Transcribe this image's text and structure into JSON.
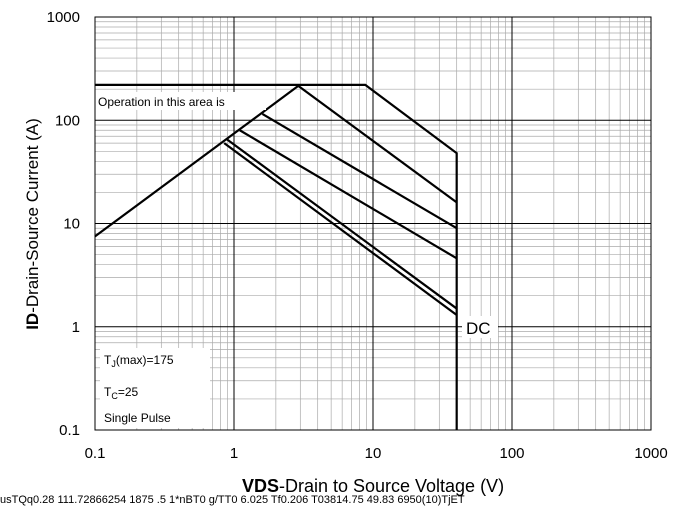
{
  "chart_data": {
    "type": "line",
    "x_label_bold": "VDS",
    "x_label_rest": "-Drain to Source Voltage (V)",
    "y_label_bold": "ID",
    "y_label_rest": "-Drain-Source Current (A)",
    "footer_text": "usTQq0.28 111.72866254 1875 .5 1*nBT0 g/TT0 6.025 Tf0.206 T03814.75 49.83 6950(10)TjET",
    "annotations": {
      "area": "Operation in this area is",
      "dc": "DC",
      "tj": [
        "T",
        "J",
        "(max)=175"
      ],
      "tc": [
        "T",
        "C",
        "=25"
      ],
      "pulse": "Single Pulse"
    },
    "xlog": true,
    "ylog": true,
    "grid": true,
    "minor_grid": true,
    "xlim": [
      0.1,
      1000
    ],
    "ylim": [
      0.1,
      1000
    ],
    "xticks": [
      0.1,
      1,
      10,
      100,
      1000
    ],
    "yticks": [
      0.1,
      1,
      10,
      100,
      1000
    ],
    "series": [
      {
        "color": "#000000",
        "x": [
          0.1,
          8.8,
          40,
          40
        ],
        "values": [
          220,
          220,
          48,
          0.1
        ]
      },
      {
        "color": "#000000",
        "x": [
          0.1,
          2.9
        ],
        "values": [
          7.5,
          215
        ]
      },
      {
        "color": "#000000",
        "x": [
          2.9,
          40
        ],
        "values": [
          215,
          16
        ]
      },
      {
        "color": "#000000",
        "x": [
          1.6,
          40
        ],
        "values": [
          115,
          9
        ]
      },
      {
        "color": "#000000",
        "x": [
          1.1,
          40
        ],
        "values": [
          80,
          4.6
        ]
      },
      {
        "color": "#000000",
        "x": [
          0.88,
          40
        ],
        "values": [
          66,
          1.5
        ]
      },
      {
        "color": "#000000",
        "x": [
          0.85,
          40
        ],
        "values": [
          60,
          1.3
        ]
      }
    ]
  }
}
